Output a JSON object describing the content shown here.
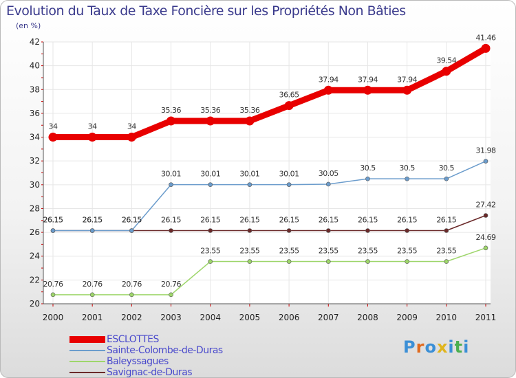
{
  "title": "Evolution du Taux de Taxe Foncière sur les Propriétés Non Bâties",
  "unit": "(en %)",
  "logo": {
    "letters": [
      "P",
      "r",
      "o",
      "x",
      "i",
      "t",
      "i"
    ],
    "colors": [
      "#3b8fd6",
      "#e06a1e",
      "#3b8fd6",
      "#e0b51e",
      "#3b8fd6",
      "#4caf50",
      "#3b8fd6"
    ]
  },
  "chart_data": {
    "type": "line",
    "title": "Evolution du Taux de Taxe Foncière sur les Propriétés Non Bâties",
    "ylabel": "(en %)",
    "xlabel": "",
    "x": [
      "2000",
      "2001",
      "2002",
      "2003",
      "2004",
      "2005",
      "2006",
      "2007",
      "2008",
      "2009",
      "2010",
      "2011"
    ],
    "ylim": [
      20,
      42
    ],
    "yticks": [
      20,
      22,
      24,
      26,
      28,
      30,
      32,
      34,
      36,
      38,
      40,
      42
    ],
    "grid": true,
    "legend_position": "bottom-left",
    "series": [
      {
        "name": "ESCLOTTES",
        "color": "#e80000",
        "values": [
          34,
          34,
          34,
          35.36,
          35.36,
          35.36,
          36.65,
          37.94,
          37.94,
          37.94,
          39.54,
          41.46
        ]
      },
      {
        "name": "Sainte-Colombe-de-Duras",
        "color": "#6b9ccc",
        "values": [
          26.15,
          26.15,
          26.15,
          30.01,
          30.01,
          30.01,
          30.01,
          30.05,
          30.5,
          30.5,
          30.5,
          31.98
        ]
      },
      {
        "name": "Baleyssagues",
        "color": "#9ed66b",
        "values": [
          20.76,
          20.76,
          20.76,
          20.76,
          23.55,
          23.55,
          23.55,
          23.55,
          23.55,
          23.55,
          23.55,
          24.69
        ]
      },
      {
        "name": "Savignac-de-Duras",
        "color": "#6b2a2a",
        "values": [
          26.15,
          26.15,
          26.15,
          26.15,
          26.15,
          26.15,
          26.15,
          26.15,
          26.15,
          26.15,
          26.15,
          27.42
        ]
      }
    ]
  }
}
